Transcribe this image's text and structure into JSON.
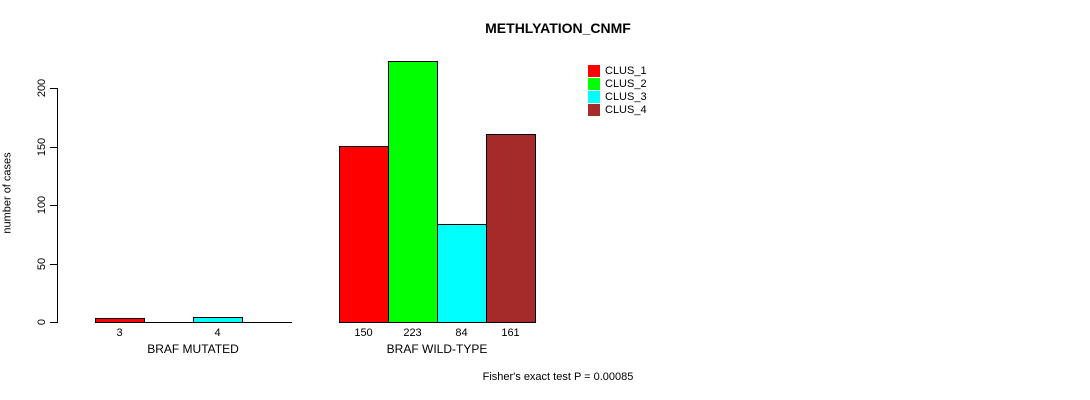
{
  "chart_data": {
    "type": "bar",
    "grouped": true,
    "title": "METHLYATION_CNMF",
    "ylabel": "number of cases",
    "annotation": "Fisher's exact test P = 0.00085",
    "categories": [
      "BRAF MUTATED",
      "BRAF WILD-TYPE"
    ],
    "series": [
      {
        "name": "CLUS_1",
        "color": "#FF0000",
        "values": [
          3,
          150
        ]
      },
      {
        "name": "CLUS_2",
        "color": "#00FF00",
        "values": [
          0,
          223
        ]
      },
      {
        "name": "CLUS_3",
        "color": "#00FFFF",
        "values": [
          4,
          84
        ]
      },
      {
        "name": "CLUS_4",
        "color": "#A52A2A",
        "values": [
          0,
          161
        ]
      }
    ],
    "bar_value_labels": {
      "BRAF MUTATED": [
        "3",
        "",
        "4",
        ""
      ],
      "BRAF WILD-TYPE": [
        "150",
        "223",
        "84",
        "161"
      ]
    },
    "yticks": [
      0,
      50,
      100,
      150,
      200
    ],
    "ylim": [
      0,
      230
    ],
    "grid": false,
    "legend_position": "top-right",
    "legend_entries": [
      "CLUS_1",
      "CLUS_2",
      "CLUS_3",
      "CLUS_4"
    ]
  }
}
